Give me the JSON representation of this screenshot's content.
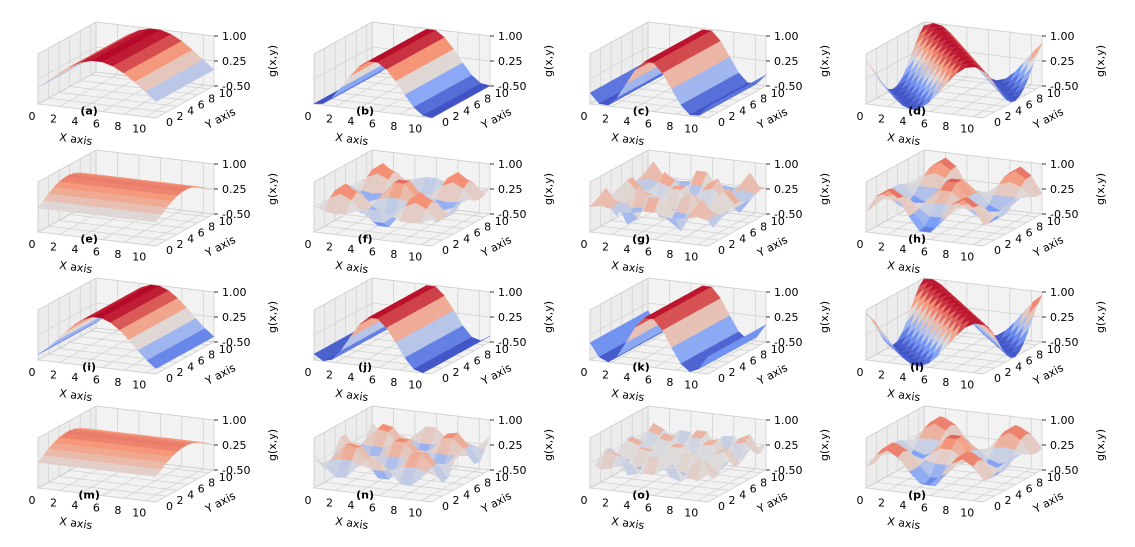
{
  "chart_data": {
    "type": "surface3d",
    "grid": true,
    "colormap": "coolwarm",
    "layout": {
      "rows": 4,
      "cols": 4
    },
    "xlabel": "X axis",
    "ylabel": "Y axis",
    "zlabel": "g(x,y)",
    "x_ticks": [
      "0",
      "2",
      "4",
      "6",
      "8",
      "10"
    ],
    "y_ticks": [
      "0",
      "2",
      "4",
      "6",
      "8",
      "10"
    ],
    "z_ticks": [
      "-0.50",
      "0.25",
      "1.00"
    ],
    "xlim": [
      0,
      11
    ],
    "ylim": [
      0,
      11
    ],
    "zlim": [
      -0.5,
      1.0
    ],
    "panels": [
      {
        "label": "(a)",
        "fx": 0.35,
        "fy": 0.0,
        "amp": 1.0,
        "mode": "cos",
        "mesh": 11
      },
      {
        "label": "(b)",
        "fx": 0.6,
        "fy": 0.0,
        "amp": 1.0,
        "mode": "cos",
        "mesh": 13
      },
      {
        "label": "(c)",
        "fx": 0.75,
        "fy": 0.0,
        "amp": 1.0,
        "mode": "cos",
        "mesh": 13
      },
      {
        "label": "(d)",
        "fx": 0.55,
        "fy": 0.45,
        "amp": 1.0,
        "mode": "cos",
        "mesh": 13
      },
      {
        "label": "(e)",
        "fx": 0.0,
        "fy": 0.3,
        "amp": 0.6,
        "mode": "cos",
        "mesh": 11
      },
      {
        "label": "(f)",
        "fx": 0.9,
        "fy": 0.9,
        "amp": 0.8,
        "mode": "prod",
        "mesh": 11
      },
      {
        "label": "(g)",
        "fx": 1.4,
        "fy": 1.4,
        "amp": 0.7,
        "mode": "prod",
        "mesh": 11
      },
      {
        "label": "(h)",
        "fx": 0.9,
        "fy": 0.6,
        "amp": 0.8,
        "mode": "prod",
        "mesh": 11
      },
      {
        "label": "(i)",
        "fx": 0.45,
        "fy": 0.0,
        "amp": 1.0,
        "mode": "cos",
        "mesh": 13
      },
      {
        "label": "(j)",
        "fx": 0.7,
        "fy": 0.0,
        "amp": 1.0,
        "mode": "cos",
        "mesh": 13
      },
      {
        "label": "(k)",
        "fx": 0.8,
        "fy": 0.0,
        "amp": 1.0,
        "mode": "cos",
        "mesh": 13
      },
      {
        "label": "(l)",
        "fx": 0.55,
        "fy": 0.5,
        "amp": 1.0,
        "mode": "cos",
        "mesh": 13
      },
      {
        "label": "(m)",
        "fx": 0.0,
        "fy": 0.28,
        "amp": 0.6,
        "mode": "cos",
        "mesh": 11
      },
      {
        "label": "(n)",
        "fx": 1.0,
        "fy": 1.0,
        "amp": 0.7,
        "mode": "prod",
        "mesh": 11
      },
      {
        "label": "(o)",
        "fx": 1.5,
        "fy": 1.5,
        "amp": 0.6,
        "mode": "prod",
        "mesh": 11
      },
      {
        "label": "(p)",
        "fx": 0.9,
        "fy": 0.7,
        "amp": 0.8,
        "mode": "prod",
        "mesh": 11
      }
    ]
  }
}
